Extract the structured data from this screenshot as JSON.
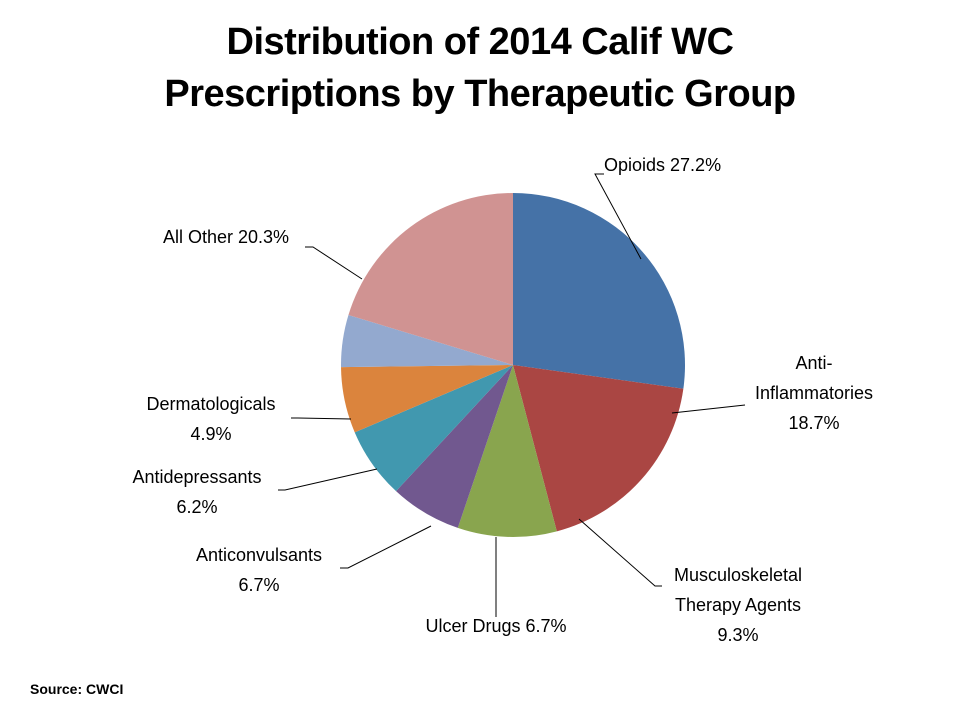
{
  "title": {
    "line1": "Distribution of 2014 Calif WC",
    "line2": "Prescriptions by Therapeutic Group"
  },
  "source": "Source: CWCI",
  "chart_data": {
    "type": "pie",
    "start_angle_deg": 0,
    "direction": "clockwise",
    "slices": [
      {
        "name": "Opioids",
        "value": 27.2,
        "color": "#4572A7",
        "label_lines": [
          "Opioids 27.2%"
        ]
      },
      {
        "name": "Anti-Inflammatories",
        "value": 18.7,
        "color": "#AA4643",
        "label_lines": [
          "Anti-",
          "Inflammatories",
          "18.7%"
        ]
      },
      {
        "name": "Musculoskeletal Therapy Agents",
        "value": 9.3,
        "color": "#89A54E",
        "label_lines": [
          "Musculoskeletal",
          "Therapy Agents",
          "9.3%"
        ]
      },
      {
        "name": "Ulcer Drugs",
        "value": 6.7,
        "color": "#71588F",
        "label_lines": [
          "Ulcer Drugs 6.7%"
        ]
      },
      {
        "name": "Anticonvulsants",
        "value": 6.7,
        "color": "#4198AF",
        "label_lines": [
          "Anticonvulsants",
          "6.7%"
        ]
      },
      {
        "name": "Antidepressants",
        "value": 6.2,
        "color": "#DB843D",
        "label_lines": [
          "Antidepressants",
          "6.2%"
        ]
      },
      {
        "name": "Dermatologicals",
        "value": 4.9,
        "color": "#93A9CF",
        "label_lines": [
          "Dermatologicals",
          "4.9%"
        ]
      },
      {
        "name": "All Other",
        "value": 20.3,
        "color": "#D09392",
        "label_lines": [
          "All Other 20.3%"
        ]
      }
    ]
  }
}
